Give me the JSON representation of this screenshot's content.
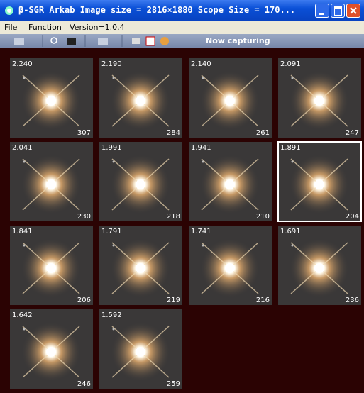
{
  "window": {
    "title": "β-SGR Arkab  Image size = 2816×1880  Scope Size = 170..."
  },
  "menu": [
    "File",
    "Function",
    "Version=1.0.4"
  ],
  "toolbar": {
    "status": "Now capturing"
  },
  "tiles": [
    {
      "value": "2.240",
      "count": 307
    },
    {
      "value": "2.190",
      "count": 284
    },
    {
      "value": "2.140",
      "count": 261
    },
    {
      "value": "2.091",
      "count": 247
    },
    {
      "value": "2.041",
      "count": 230
    },
    {
      "value": "1.991",
      "count": 218
    },
    {
      "value": "1.941",
      "count": 210
    },
    {
      "value": "1.891",
      "count": 204
    },
    {
      "value": "1.841",
      "count": 206
    },
    {
      "value": "1.791",
      "count": 219
    },
    {
      "value": "1.741",
      "count": 216
    },
    {
      "value": "1.691",
      "count": 236
    },
    {
      "value": "1.642",
      "count": 246
    },
    {
      "value": "1.592",
      "count": 259
    }
  ]
}
